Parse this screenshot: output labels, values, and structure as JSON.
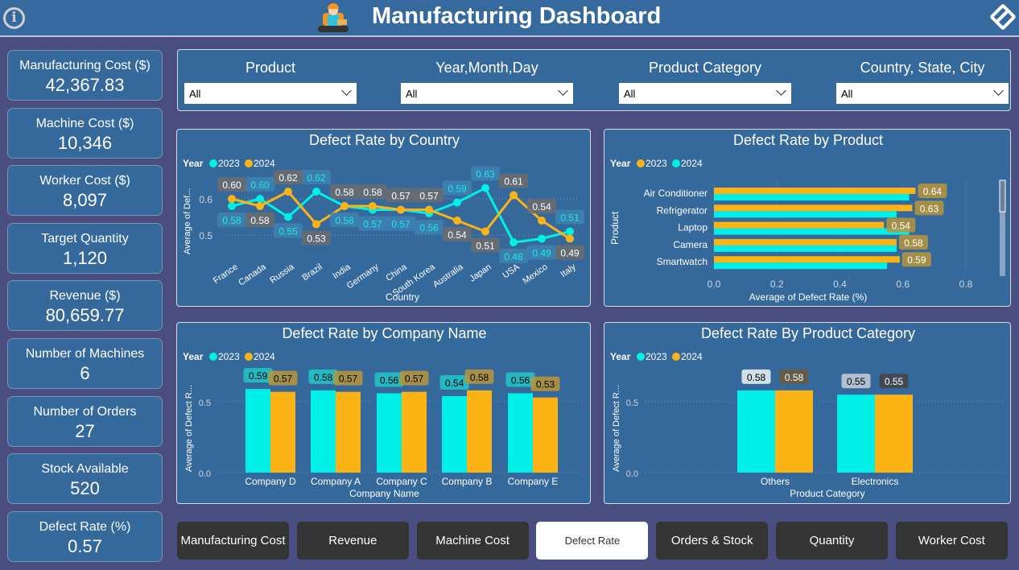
{
  "header": {
    "title": "Manufacturing Dashboard",
    "info_icon": "info-icon",
    "logo": "factory-worker-logo",
    "nav_icon": "diamond-navigation-icon"
  },
  "kpis": [
    {
      "label": "Manufacturing Cost ($)",
      "value": "42,367.83"
    },
    {
      "label": "Machine Cost ($)",
      "value": "10,346"
    },
    {
      "label": "Worker Cost ($)",
      "value": "8,097"
    },
    {
      "label": "Target Quantity",
      "value": "1,120"
    },
    {
      "label": "Revenue ($)",
      "value": "80,659.77"
    },
    {
      "label": "Number of Machines",
      "value": "6"
    },
    {
      "label": "Number of Orders",
      "value": "27"
    },
    {
      "label": "Stock Available",
      "value": "520"
    },
    {
      "label": "Defect Rate (%)",
      "value": "0.57"
    }
  ],
  "filters": [
    {
      "label": "Product",
      "value": "All"
    },
    {
      "label": "Year,Month,Day",
      "value": "All"
    },
    {
      "label": "Product Category",
      "value": "All"
    },
    {
      "label": "Country, State, City",
      "value": "All"
    }
  ],
  "colors": {
    "c2023_country": "#00f0e8",
    "c2024_country": "#fbb316",
    "cyan": "#00f0e8",
    "orange": "#fbb316"
  },
  "chart_data": [
    {
      "type": "line",
      "title": "Defect Rate by Country",
      "legend_title": "Year",
      "xlabel": "Country",
      "ylabel": "Average of Def...",
      "yticks": [
        0.5,
        0.6
      ],
      "ylim": [
        0.46,
        0.66
      ],
      "categories": [
        "France",
        "Canada",
        "Russia",
        "Brazil",
        "India",
        "Germany",
        "China",
        "South Korea",
        "Australia",
        "Japan",
        "USA",
        "Mexico",
        "Italy"
      ],
      "series": [
        {
          "name": "2023",
          "color": "#00f0e8",
          "values": [
            0.58,
            0.6,
            0.55,
            0.62,
            0.58,
            0.57,
            0.57,
            0.56,
            0.59,
            0.63,
            0.48,
            0.49,
            0.51
          ]
        },
        {
          "name": "2024",
          "color": "#fbb316",
          "values": [
            0.6,
            0.58,
            0.62,
            0.53,
            0.58,
            0.58,
            0.57,
            0.57,
            0.54,
            0.51,
            0.61,
            0.54,
            0.49
          ]
        }
      ]
    },
    {
      "type": "bar",
      "orientation": "horizontal",
      "title": "Defect Rate by Product",
      "legend_title": "Year",
      "xlabel": "Average of Defect Rate (%)",
      "ylabel": "Product",
      "xticks": [
        "0.0",
        "0.2",
        "0.4",
        "0.6",
        "0.8"
      ],
      "xlim": [
        0,
        0.8
      ],
      "categories": [
        "Air Conditioner",
        "Refrigerator",
        "Laptop",
        "Camera",
        "Smartwatch"
      ],
      "series": [
        {
          "name": "2023",
          "color": "#fbb316",
          "values": [
            0.64,
            0.63,
            0.54,
            0.58,
            0.59
          ]
        },
        {
          "name": "2024",
          "color": "#00f0e8",
          "values": [
            0.62,
            0.58,
            0.62,
            0.58,
            0.55
          ]
        }
      ]
    },
    {
      "type": "bar",
      "title": "Defect Rate by Company Name",
      "legend_title": "Year",
      "xlabel": "Company Name",
      "ylabel": "Average of Defect R...",
      "yticks": [
        "0.0",
        "0.5"
      ],
      "ylim": [
        0,
        0.7
      ],
      "categories": [
        "Company D",
        "Company A",
        "Company C",
        "Company B",
        "Company E"
      ],
      "series": [
        {
          "name": "2023",
          "color": "#00f0e8",
          "values": [
            0.59,
            0.58,
            0.56,
            0.54,
            0.56
          ]
        },
        {
          "name": "2024",
          "color": "#fbb316",
          "values": [
            0.57,
            0.57,
            0.57,
            0.58,
            0.53
          ]
        }
      ]
    },
    {
      "type": "bar",
      "title": "Defect Rate By Product Category",
      "legend_title": "Year",
      "xlabel": "Product Category",
      "ylabel": "Average of Defect R...",
      "yticks": [
        "0.0",
        "0.5"
      ],
      "ylim": [
        0,
        0.7
      ],
      "categories": [
        "Others",
        "Electronics"
      ],
      "series": [
        {
          "name": "2023",
          "color": "#00f0e8",
          "values": [
            0.58,
            0.55
          ]
        },
        {
          "name": "2024",
          "color": "#fbb316",
          "values": [
            0.58,
            0.55
          ]
        }
      ]
    }
  ],
  "buttons": [
    {
      "label": "Manufacturing Cost"
    },
    {
      "label": "Revenue"
    },
    {
      "label": "Machine Cost"
    },
    {
      "label": "Defect Rate",
      "active": true
    },
    {
      "label": "Orders & Stock"
    },
    {
      "label": "Quantity"
    },
    {
      "label": "Worker Cost"
    }
  ]
}
